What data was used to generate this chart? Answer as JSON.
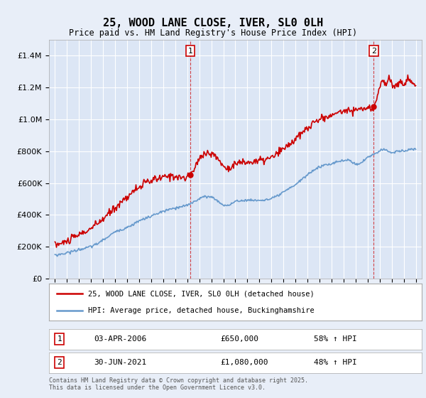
{
  "title": "25, WOOD LANE CLOSE, IVER, SL0 0LH",
  "subtitle": "Price paid vs. HM Land Registry's House Price Index (HPI)",
  "footer": "Contains HM Land Registry data © Crown copyright and database right 2025.\nThis data is licensed under the Open Government Licence v3.0.",
  "background_color": "#e8eef8",
  "plot_bg_color": "#dce6f5",
  "red_color": "#cc0000",
  "blue_color": "#6699cc",
  "marker1_x": 2006.25,
  "marker1_y": 650000,
  "marker1_label": "1",
  "marker1_date": "03-APR-2006",
  "marker1_price": "£650,000",
  "marker1_hpi": "58% ↑ HPI",
  "marker2_x": 2021.5,
  "marker2_y": 1080000,
  "marker2_label": "2",
  "marker2_date": "30-JUN-2021",
  "marker2_price": "£1,080,000",
  "marker2_hpi": "48% ↑ HPI",
  "ylim": [
    0,
    1500000
  ],
  "xlim": [
    1994.5,
    2025.5
  ],
  "legend_line1": "25, WOOD LANE CLOSE, IVER, SL0 0LH (detached house)",
  "legend_line2": "HPI: Average price, detached house, Buckinghamshire"
}
